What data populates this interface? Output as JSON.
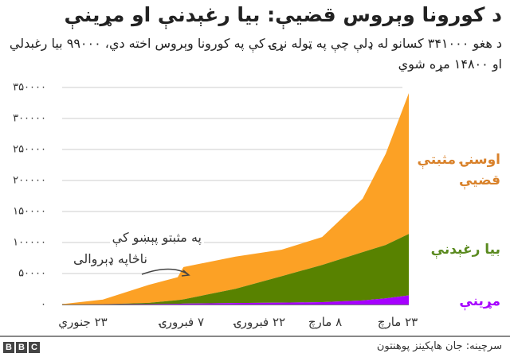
{
  "title": "د کورونا وېروس قضيې: بيا رغېدنې او مړينې",
  "subtitle": "د هغو ۳۴۱۰۰۰ کسانو له ډلې چې په ټوله نړۍ کې په کورونا وېروس اخته دي، ۹۹۰۰۰ بيا رغبدلي او ۱۴۸۰۰ مړه شوي",
  "annotation": {
    "line1": "په مثبتو پېښو کې",
    "line2": "ناڅاپه ډېروالی"
  },
  "legend": {
    "active": "اوسنۍ مثبتې قضيې",
    "recovered": "بيا رغېدنې",
    "deaths": "مړينې"
  },
  "y_ticks": [
    "۳۵۰۰۰۰",
    "۳۰۰۰۰۰",
    "۲۵۰۰۰۰",
    "۲۰۰۰۰۰",
    "۱۵۰۰۰۰",
    "۱۰۰۰۰۰",
    "۵۰۰۰۰",
    "۰"
  ],
  "x_ticks": [
    "۲۳ جنوري",
    "۷ فبرورۍ",
    "۲۲ فبرورۍ",
    "۸ مارچ",
    "۲۳ مارچ"
  ],
  "footer": {
    "logo": [
      "B",
      "B",
      "C"
    ],
    "source": "سرچينه: جان هاپکينز پوهنتون"
  },
  "colors": {
    "active": "#fca125",
    "recovered": "#588200",
    "deaths": "#a600ff",
    "active_label": "#d9822b",
    "recovered_label": "#5a8a1f",
    "deaths_label": "#a600ff"
  },
  "chart_data": {
    "type": "area",
    "stacked": true,
    "title": "د کورونا وېروس قضيې: بيا رغېدنې او مړينې",
    "xlabel": "",
    "ylabel": "",
    "ylim": [
      0,
      350000
    ],
    "grid": true,
    "legend_position": "right (inline labels)",
    "x": [
      "2020-01-23",
      "2020-01-30",
      "2020-02-07",
      "2020-02-12",
      "2020-02-13",
      "2020-02-22",
      "2020-03-01",
      "2020-03-08",
      "2020-03-15",
      "2020-03-19",
      "2020-03-23"
    ],
    "x_tick_labels": [
      "۲۳ جنوري",
      "۷ فبرورۍ",
      "۲۲ فبرورۍ",
      "۸ مارچ",
      "۲۳ مارچ"
    ],
    "series": [
      {
        "name": "مړينې",
        "values": [
          17,
          170,
          720,
          1110,
          1370,
          2460,
          3000,
          3800,
          6500,
          10000,
          14800
        ]
      },
      {
        "name": "بيا رغېدنې",
        "values": [
          28,
          140,
          2000,
          6000,
          7000,
          22800,
          42700,
          60000,
          78000,
          86000,
          99000
        ]
      },
      {
        "name": "اوسنۍ مثبتې قضيې",
        "values": [
          610,
          7600,
          29000,
          37000,
          52000,
          52000,
          42700,
          45000,
          86000,
          147000,
          227000
        ]
      }
    ],
    "totals_approx": [
      655,
      7910,
      31720,
      44110,
      60370,
      77260,
      88400,
      108800,
      170500,
      243000,
      341000
    ],
    "annotations": [
      {
        "text": "په مثبتو پېښو کې ناڅاپه ډېروالی",
        "x": "2020-02-13"
      }
    ]
  }
}
